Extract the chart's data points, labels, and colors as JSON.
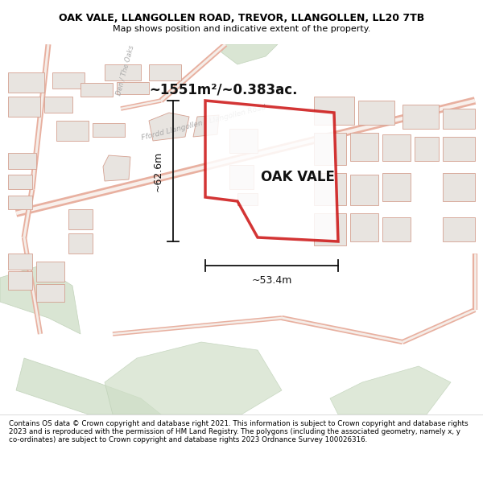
{
  "title_line1": "OAK VALE, LLANGOLLEN ROAD, TREVOR, LLANGOLLEN, LL20 7TB",
  "title_line2": "Map shows position and indicative extent of the property.",
  "area_text": "~1551m²/~0.383ac.",
  "property_label": "OAK VALE",
  "dim_width": "~53.4m",
  "dim_height": "~62.6m",
  "footer": "Contains OS data © Crown copyright and database right 2021. This information is subject to Crown copyright and database rights 2023 and is reproduced with the permission of HM Land Registry. The polygons (including the associated geometry, namely x, y co-ordinates) are subject to Crown copyright and database rights 2023 Ordnance Survey 100026316.",
  "map_bg": "#f5f2ee",
  "building_fill": "#e8e4e0",
  "building_edge": "#d4a090",
  "road_color": "#e8b0a0",
  "road_center": "#f5ede8",
  "green_fill": "#d0dfc8",
  "green_edge": "#b8ccb0",
  "property_edge": "#cc1111",
  "dim_color": "#111111",
  "road_label_color": "#aaaaaa",
  "title_bg": "#ffffff",
  "footer_bg": "#ffffff"
}
